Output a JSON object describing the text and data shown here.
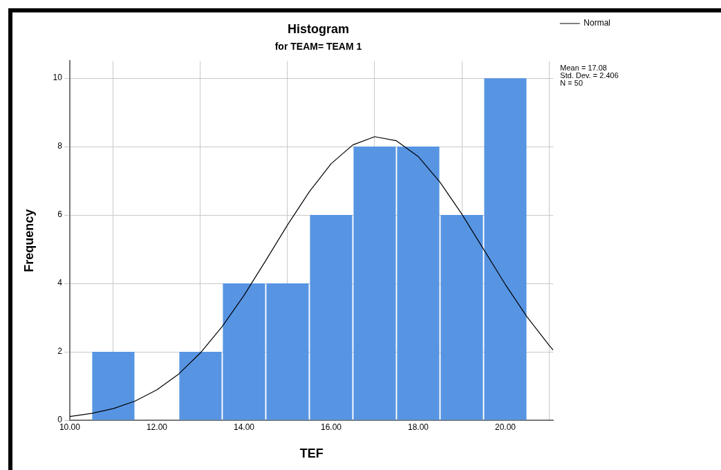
{
  "chart_data": {
    "type": "histogram",
    "title": "Histogram",
    "subtitle": "for TEAM= TEAM 1",
    "xlabel": "TEF",
    "ylabel": "Frequency",
    "bins": [
      10.5,
      11.5,
      12.5,
      13.5,
      14.5,
      15.5,
      16.5,
      17.5,
      18.5,
      19.5,
      20.5
    ],
    "values": [
      2,
      0,
      2,
      4,
      4,
      6,
      8,
      8,
      6,
      10
    ],
    "color": "#5795e3",
    "series": [
      {
        "name": "Normal",
        "type": "line",
        "color": "#000000",
        "marker": "none",
        "x": [
          10,
          10.5,
          11,
          11.5,
          12,
          12.5,
          13,
          13.5,
          14,
          14.5,
          15,
          15.5,
          16,
          16.5,
          17,
          17.5,
          18,
          18.5,
          19,
          19.5,
          20,
          20.5,
          21,
          21.1
        ],
        "values": [
          0.11,
          0.2,
          0.34,
          0.56,
          0.89,
          1.35,
          1.97,
          2.74,
          3.65,
          4.67,
          5.71,
          6.68,
          7.5,
          8.05,
          8.29,
          8.17,
          7.71,
          6.96,
          6.03,
          5,
          3.97,
          3.02,
          2.2,
          2.05
        ]
      }
    ],
    "xlim": [
      10,
      21.1
    ],
    "xticks": [
      {
        "value": 10,
        "label": "10.00"
      },
      {
        "value": 12,
        "label": "12.00"
      },
      {
        "value": 14,
        "label": "14.00"
      },
      {
        "value": 16,
        "label": "16.00"
      },
      {
        "value": 18,
        "label": "18.00"
      },
      {
        "value": 20,
        "label": "20.00"
      }
    ],
    "ylim": [
      0,
      10.5
    ],
    "yticks": [
      0,
      2,
      4,
      6,
      8,
      10
    ],
    "grid": true,
    "legend": "top right",
    "annotations": [
      "Mean = 17.08\nStd. Dev. = 2.406\nN = 50"
    ]
  }
}
